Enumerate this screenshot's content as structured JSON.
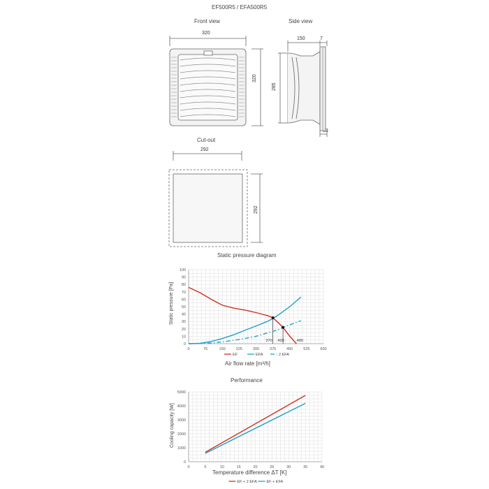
{
  "header": {
    "title": "EF500R5 / EFA500R5"
  },
  "front_view": {
    "title": "Front view",
    "width": "320",
    "height": "320"
  },
  "side_view": {
    "title": "Side view",
    "depth": "150",
    "flange": "7",
    "height": "285",
    "bottom": "33"
  },
  "cutout": {
    "title": "Cut-out",
    "width": "292",
    "height": "292"
  },
  "colors": {
    "ef": "#d03020",
    "efa": "#1ea0c8",
    "grid": "#dcdcdc",
    "outline": "#666666"
  },
  "chart_data": [
    {
      "type": "line",
      "title": "Static pressure diagram",
      "xlabel": "Air flow rate [m³/h]",
      "ylabel": "Static pressure [Pa]",
      "xlim": [
        0,
        600
      ],
      "ylim": [
        0,
        100
      ],
      "xticks": [
        0,
        75,
        150,
        225,
        300,
        375,
        450,
        525,
        600
      ],
      "yticks": [
        0,
        10,
        20,
        30,
        40,
        50,
        60,
        70,
        80,
        90,
        100
      ],
      "series": [
        {
          "name": "EF",
          "color": "#d03020",
          "dash": "",
          "x": [
            0,
            50,
            100,
            150,
            200,
            250,
            300,
            350,
            375,
            400,
            420,
            450,
            480
          ],
          "y": [
            76,
            69,
            60,
            52,
            48,
            45.5,
            42,
            38,
            35,
            28,
            22,
            10,
            0
          ]
        },
        {
          "name": "EFA",
          "color": "#1ea0c8",
          "dash": "",
          "x": [
            0,
            50,
            100,
            150,
            200,
            250,
            300,
            350,
            375,
            400,
            450,
            500
          ],
          "y": [
            0,
            0.5,
            3,
            7,
            12,
            18,
            24,
            30,
            34,
            39,
            50,
            63
          ]
        },
        {
          "name": "2 EFA",
          "color": "#1ea0c8",
          "dash": "6,3,1.5,3",
          "x": [
            0,
            50,
            100,
            150,
            200,
            250,
            300,
            350,
            400,
            420,
            450,
            500
          ],
          "y": [
            0,
            0.2,
            1,
            2.5,
            4.5,
            7,
            10,
            14.5,
            19,
            22,
            25.5,
            31
          ]
        }
      ],
      "markers": [
        {
          "x": 375,
          "y": 35,
          "label": "375"
        },
        {
          "x": 420,
          "y": 22,
          "label": "420"
        }
      ],
      "annotations": [
        {
          "x": 370,
          "y": 0,
          "label": "370"
        },
        {
          "x": 420,
          "y": 0,
          "label": "420"
        },
        {
          "x": 480,
          "y": 0,
          "label": "480"
        }
      ],
      "legend": [
        {
          "name": "EF",
          "color": "#d03020",
          "dash": ""
        },
        {
          "name": "EFA",
          "color": "#1ea0c8",
          "dash": ""
        },
        {
          "name": "2 EFA",
          "color": "#1ea0c8",
          "dash": "6,3,1.5,3"
        }
      ],
      "grid": true,
      "legend_position": "bottom"
    },
    {
      "type": "line",
      "title": "Performance",
      "xlabel": "Temperature difference ΔT [K]",
      "ylabel": "Cooling capacity [W]",
      "xlim": [
        0,
        40
      ],
      "ylim": [
        0,
        5000
      ],
      "xticks": [
        0,
        5,
        10,
        15,
        20,
        25,
        30,
        35,
        40
      ],
      "yticks": [
        0,
        1000,
        2000,
        3000,
        4000,
        5000
      ],
      "series": [
        {
          "name": "EF + 2 EFA",
          "color": "#d03020",
          "dash": "",
          "x": [
            5,
            35
          ],
          "y": [
            680,
            4750
          ]
        },
        {
          "name": "EF + EFA",
          "color": "#1ea0c8",
          "dash": "",
          "x": [
            5,
            35
          ],
          "y": [
            600,
            4180
          ]
        }
      ],
      "legend": [
        {
          "name": "EF + 2 EFA",
          "color": "#d03020",
          "dash": ""
        },
        {
          "name": "EF + EFA",
          "color": "#1ea0c8",
          "dash": ""
        }
      ],
      "grid": true,
      "legend_position": "bottom"
    }
  ]
}
